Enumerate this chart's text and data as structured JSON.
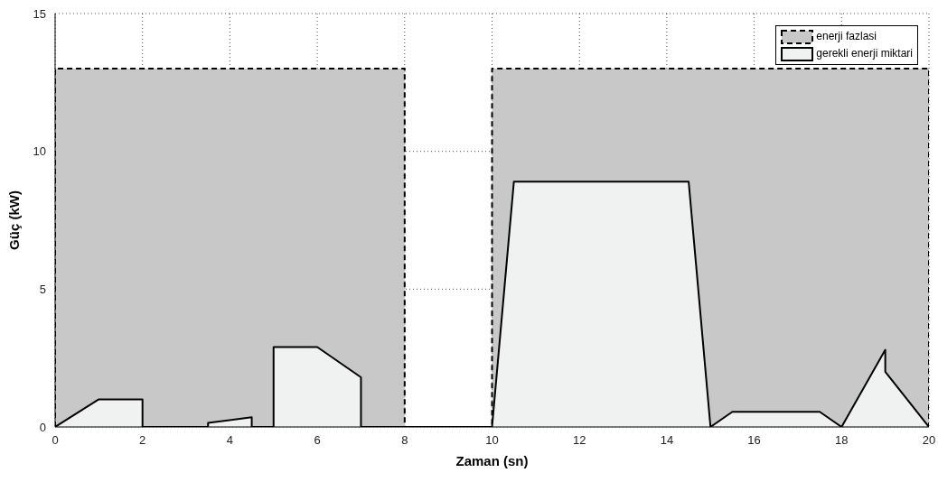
{
  "chart_data": {
    "type": "area",
    "xlabel": "Zaman (sn)",
    "ylabel": "Güç (kW)",
    "xlim": [
      0,
      20
    ],
    "ylim": [
      0,
      15
    ],
    "xticks": [
      0,
      2,
      4,
      6,
      8,
      10,
      12,
      14,
      16,
      18,
      20
    ],
    "yticks": [
      0,
      5,
      10,
      15
    ],
    "grid": true,
    "legend": "top right",
    "series": [
      {
        "name": "enerji fazlasi",
        "color": "#c8c8c8",
        "line_style": "dashed",
        "x": [
          0,
          0,
          8,
          8,
          10,
          10,
          20,
          20
        ],
        "values": [
          0,
          13,
          13,
          0,
          0,
          13,
          13,
          0
        ]
      },
      {
        "name": "gerekli enerji miktari",
        "color": "#f0f1f1",
        "line_style": "solid",
        "x": [
          0,
          1,
          2,
          2,
          3.5,
          3.5,
          4.5,
          4.5,
          5,
          5,
          6,
          7,
          7,
          10,
          10.5,
          14.5,
          15,
          15.5,
          17.5,
          18,
          19,
          19,
          20
        ],
        "values": [
          0,
          1,
          1,
          0,
          0,
          0.15,
          0.35,
          0,
          0,
          2.9,
          2.9,
          1.8,
          0,
          0,
          8.9,
          8.9,
          0,
          0.55,
          0.55,
          0,
          2.8,
          2,
          0
        ]
      }
    ]
  }
}
